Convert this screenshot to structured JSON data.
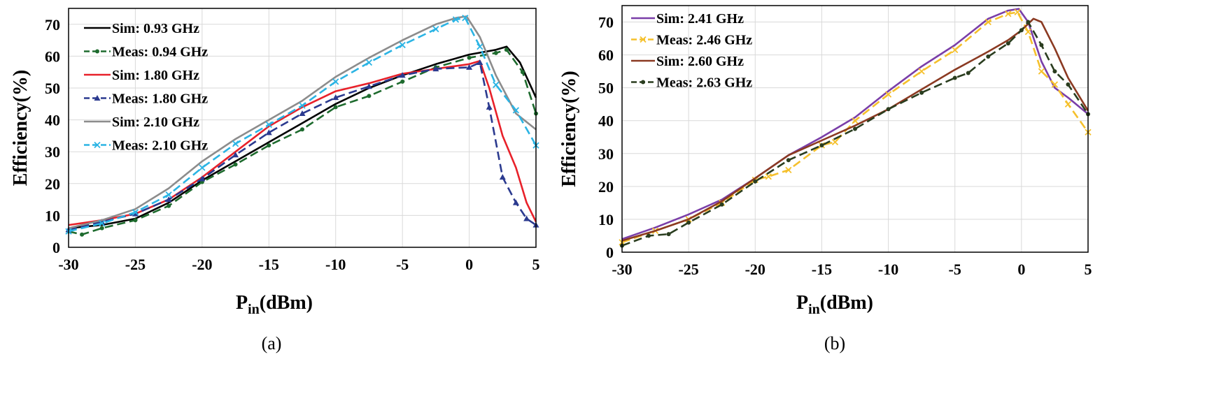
{
  "chart_data": [
    {
      "type": "line",
      "caption": "(a)",
      "xlabel_main": "P",
      "xlabel_sub": "in",
      "xlabel_unit": "(dBm)",
      "ylabel": "Efficiency(%)",
      "xlim": [
        -30,
        5
      ],
      "ylim": [
        0,
        75
      ],
      "xticks": [
        -30,
        -25,
        -20,
        -15,
        -10,
        -5,
        0,
        5
      ],
      "yticks": [
        0,
        10,
        20,
        30,
        40,
        50,
        60,
        70
      ],
      "grid": true,
      "legend_position": "top-left",
      "series": [
        {
          "name": "Sim: 0.93 GHz",
          "color": "#000000",
          "dash": "solid",
          "marker": "none",
          "x": [
            -30,
            -27.5,
            -25,
            -22.5,
            -20,
            -17.5,
            -15,
            -12.5,
            -10,
            -7.5,
            -5,
            -2.5,
            0,
            2,
            2.8,
            3.8,
            5
          ],
          "y": [
            6,
            7,
            9,
            14,
            21,
            27,
            33,
            39,
            45,
            50,
            54,
            57.5,
            60.5,
            62,
            63,
            58,
            47
          ]
        },
        {
          "name": "Meas: 0.94 GHz",
          "color": "#1e6b2e",
          "dash": "dash",
          "marker": "dot",
          "x": [
            -30,
            -29,
            -27.5,
            -25,
            -22.5,
            -20,
            -17.5,
            -15,
            -12.5,
            -10,
            -7.5,
            -5,
            -2.5,
            0,
            2,
            2.8,
            4,
            5
          ],
          "y": [
            5,
            4,
            6,
            8.5,
            13,
            20.5,
            26,
            32,
            37,
            44,
            47.5,
            52,
            56.5,
            59.5,
            61,
            62,
            55,
            42
          ]
        },
        {
          "name": "Sim: 1.80 GHz",
          "color": "#e8212a",
          "dash": "solid",
          "marker": "none",
          "x": [
            -30,
            -27.5,
            -25,
            -22.5,
            -20,
            -17.5,
            -15,
            -12.5,
            -10,
            -7.5,
            -5,
            -2.5,
            0,
            0.8,
            1.5,
            2.5,
            3.5,
            4.3,
            5
          ],
          "y": [
            7,
            8.5,
            10.5,
            15,
            22,
            30,
            38,
            44,
            49,
            51.5,
            54.5,
            56,
            57.5,
            58.5,
            50,
            35,
            25,
            14,
            8
          ]
        },
        {
          "name": "Meas: 1.80 GHz",
          "color": "#2b3a8f",
          "dash": "dash",
          "marker": "triangle",
          "x": [
            -30,
            -27.5,
            -25,
            -22.5,
            -20,
            -17.5,
            -15,
            -12.5,
            -10,
            -7.5,
            -5,
            -2.5,
            0,
            0.8,
            1.5,
            2.5,
            3.5,
            4.3,
            5
          ],
          "y": [
            5.5,
            8,
            10.5,
            15,
            21.5,
            29,
            36,
            42,
            47,
            50.5,
            54,
            56,
            56.5,
            58,
            44,
            22,
            14,
            9,
            7
          ]
        },
        {
          "name": "Sim: 2.10 GHz",
          "color": "#8c8c8c",
          "dash": "solid",
          "marker": "none",
          "x": [
            -30,
            -27.5,
            -25,
            -22.5,
            -20,
            -17.5,
            -15,
            -12.5,
            -10,
            -7.5,
            -5,
            -2.5,
            -1,
            -0.2,
            0.8,
            2,
            3.5,
            5
          ],
          "y": [
            6,
            8.5,
            12,
            18.5,
            27,
            34,
            40,
            46,
            53.5,
            59.5,
            65,
            70,
            72,
            72.5,
            66,
            54,
            42,
            37
          ]
        },
        {
          "name": "Meas: 2.10 GHz",
          "color": "#2bb4e4",
          "dash": "dash",
          "marker": "x",
          "x": [
            -30,
            -27.5,
            -25,
            -22.5,
            -20,
            -17.5,
            -15,
            -12.5,
            -10,
            -7.5,
            -5,
            -2.5,
            -1,
            -0.3,
            0.8,
            2,
            3.5,
            5
          ],
          "y": [
            5,
            7.5,
            11,
            16.5,
            25,
            32.5,
            38.5,
            44.5,
            52,
            58,
            63.5,
            68.5,
            71.5,
            72,
            63,
            51,
            43,
            32
          ]
        }
      ]
    },
    {
      "type": "line",
      "caption": "(b)",
      "xlabel_main": "P",
      "xlabel_sub": "in",
      "xlabel_unit": "(dBm)",
      "ylabel": "Efficiency(%)",
      "xlim": [
        -30,
        5
      ],
      "ylim": [
        0,
        75
      ],
      "xticks": [
        -30,
        -25,
        -20,
        -15,
        -10,
        -5,
        0,
        5
      ],
      "yticks": [
        0,
        10,
        20,
        30,
        40,
        50,
        60,
        70
      ],
      "grid": true,
      "legend_position": "top-left",
      "series": [
        {
          "name": "Sim: 2.41 GHz",
          "color": "#7a3ea8",
          "dash": "solid",
          "marker": "none",
          "x": [
            -30,
            -27.5,
            -25,
            -22.5,
            -20,
            -17.5,
            -15,
            -12.5,
            -10,
            -7.5,
            -5,
            -2.5,
            -1,
            -0.2,
            0.5,
            1.5,
            2.5,
            3.5,
            5
          ],
          "y": [
            4,
            7.5,
            11.5,
            16,
            22.5,
            29.5,
            35,
            41,
            49,
            56.5,
            63,
            71,
            73.5,
            74,
            70,
            58,
            50,
            47,
            42
          ]
        },
        {
          "name": "Meas: 2.46 GHz",
          "color": "#f5c02c",
          "dash": "dash",
          "marker": "x",
          "x": [
            -30,
            -27.5,
            -25,
            -22.5,
            -20,
            -19,
            -17.5,
            -15,
            -14,
            -12.5,
            -10,
            -7.5,
            -5,
            -2.5,
            -1,
            -0.3,
            0.5,
            1.5,
            2.5,
            3.5,
            5
          ],
          "y": [
            3,
            6.5,
            10,
            15,
            22,
            23,
            25,
            32.5,
            33.5,
            40,
            48,
            55,
            61.5,
            70,
            72.5,
            73,
            67,
            55,
            51,
            45,
            36.5
          ]
        },
        {
          "name": "Sim: 2.60 GHz",
          "color": "#8b3a22",
          "dash": "solid",
          "marker": "none",
          "x": [
            -30,
            -27.5,
            -25,
            -22.5,
            -20,
            -17.5,
            -15,
            -12.5,
            -10,
            -7.5,
            -5,
            -2.5,
            -1,
            0,
            0.9,
            1.5,
            2.5,
            3.5,
            5
          ],
          "y": [
            3.5,
            6.5,
            10,
            15.5,
            22.5,
            29.5,
            34,
            38.5,
            43.5,
            49.5,
            55.5,
            61,
            64.5,
            67.5,
            71,
            70,
            62,
            53,
            43
          ]
        },
        {
          "name": "Meas: 2.63 GHz",
          "color": "#2a3d1f",
          "dash": "dash",
          "marker": "dot",
          "x": [
            -30,
            -28,
            -26.5,
            -25,
            -22.5,
            -20,
            -17.5,
            -15,
            -12.5,
            -10,
            -7.5,
            -5,
            -4,
            -2.5,
            -1,
            0,
            0.5,
            1.5,
            2.5,
            3.5,
            5
          ],
          "y": [
            2,
            5,
            5.5,
            9,
            14.5,
            21.5,
            28,
            32.5,
            37.5,
            43.5,
            48.5,
            53,
            54.5,
            59.5,
            63.5,
            67.5,
            70,
            63,
            55,
            51,
            42
          ]
        }
      ]
    }
  ]
}
